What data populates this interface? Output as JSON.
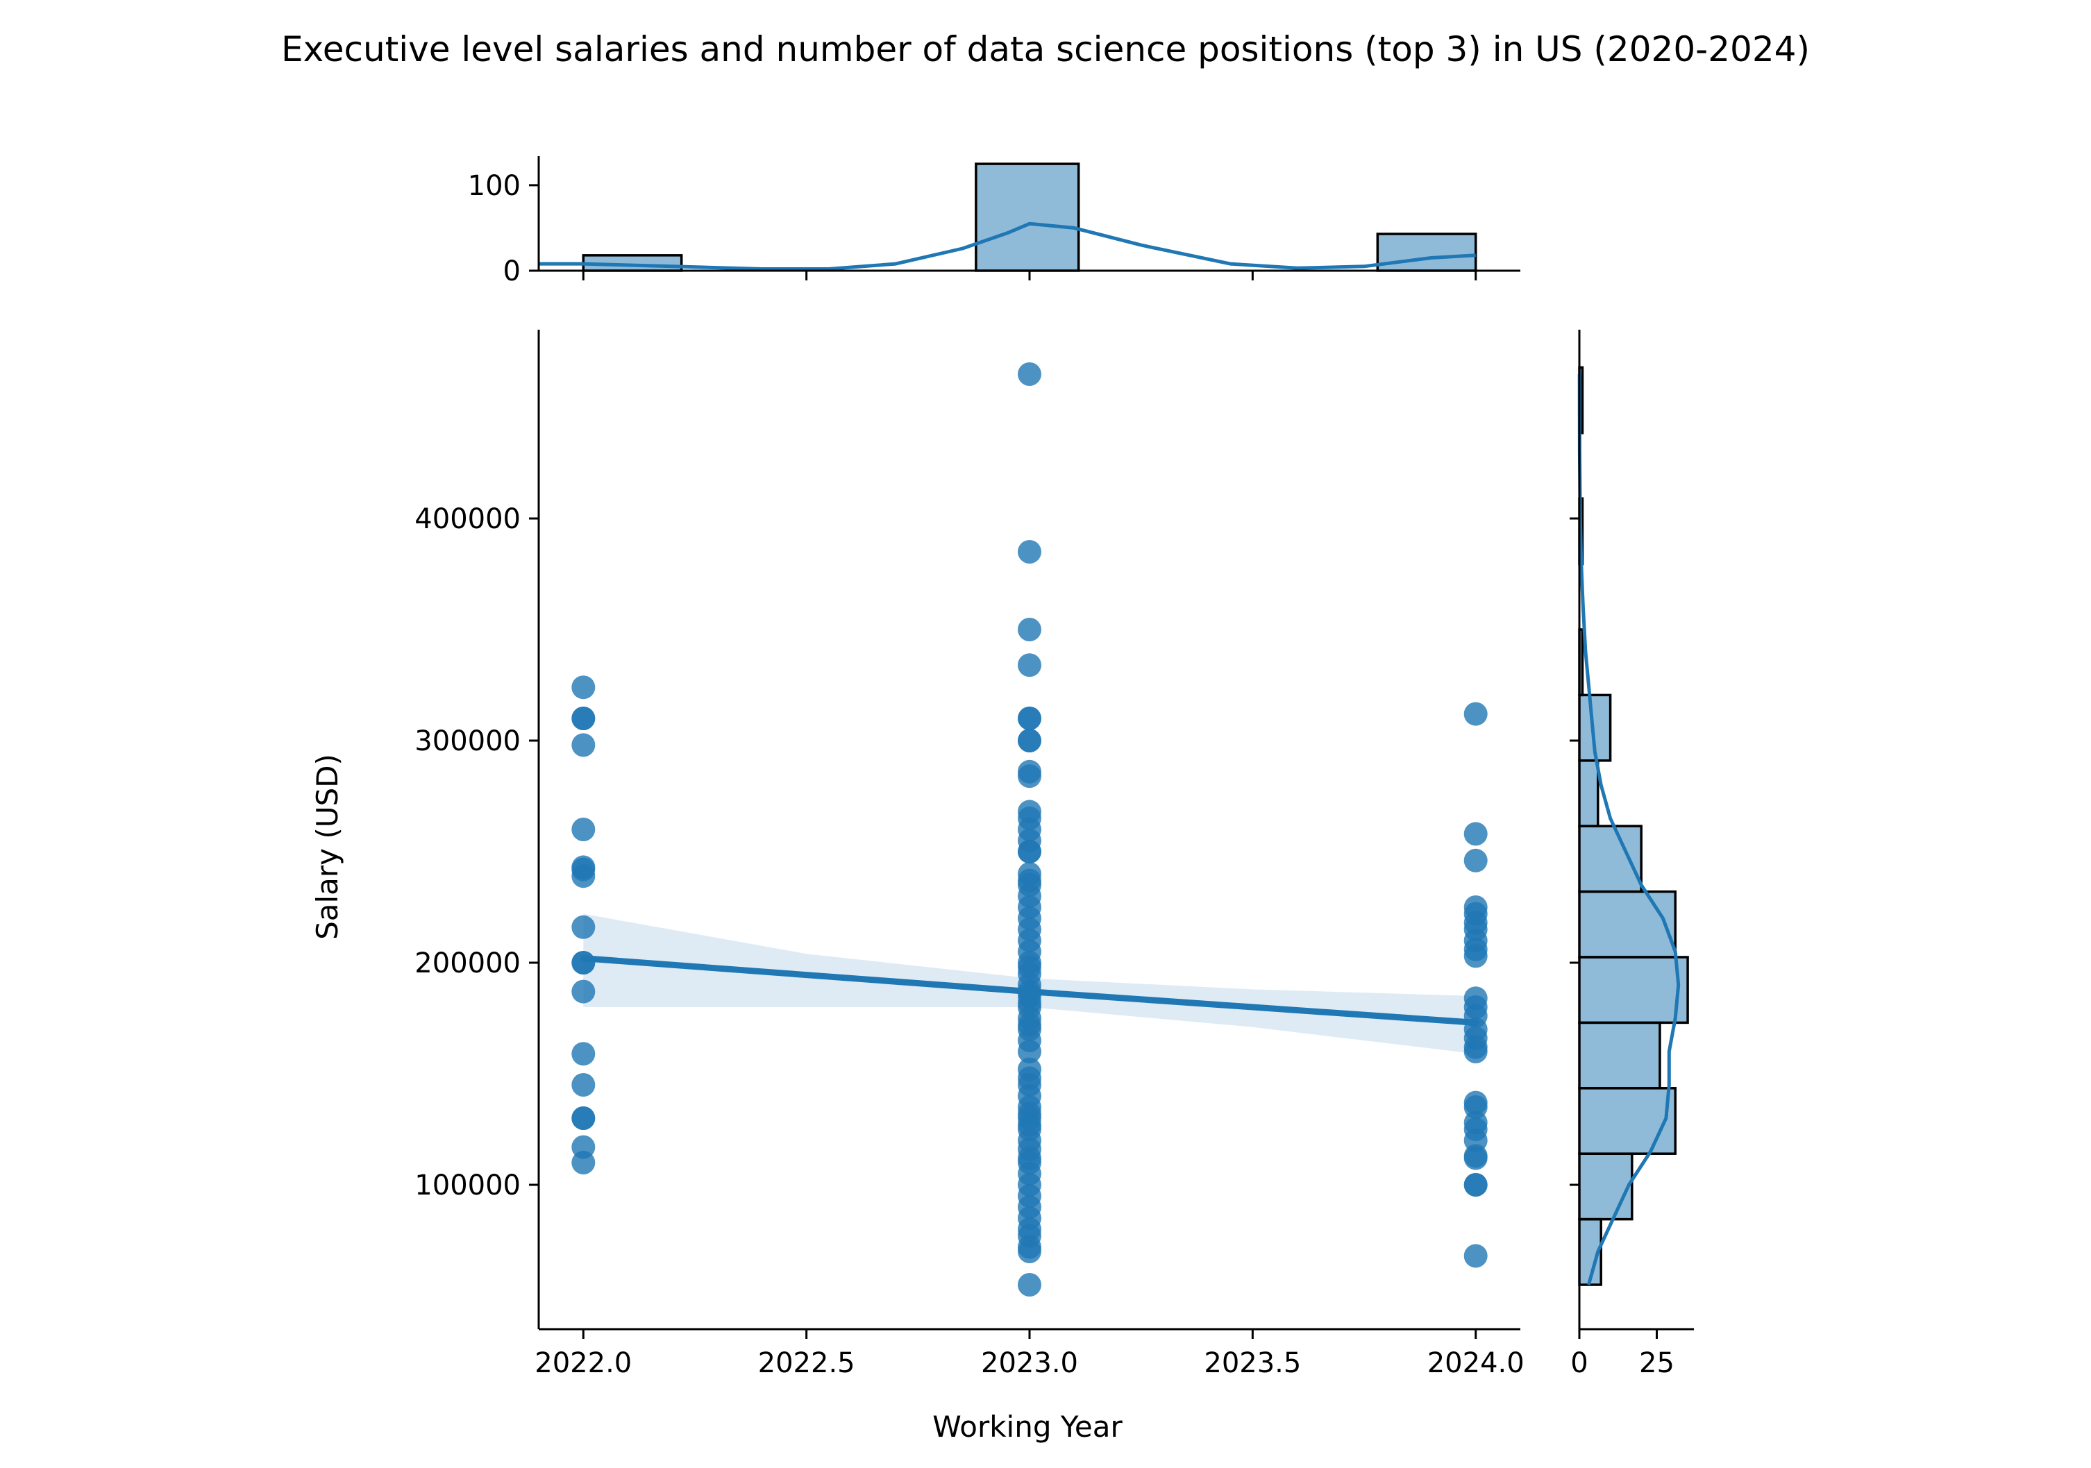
{
  "chart_data": {
    "type": "scatter",
    "title": "Executive level salaries and number of data science positions (top 3) in US (2020-2024)",
    "xlabel": "Working Year",
    "ylabel": "Salary (USD)",
    "xlim": [
      2021.9,
      2024.1
    ],
    "ylim": [
      35000,
      485000
    ],
    "x_ticks": [
      2022.0,
      2022.5,
      2023.0,
      2023.5,
      2024.0
    ],
    "x_tick_labels": [
      "2022.0",
      "2022.5",
      "2023.0",
      "2023.5",
      "2024.0"
    ],
    "y_ticks": [
      100000,
      200000,
      300000,
      400000
    ],
    "y_tick_labels": [
      "100000",
      "200000",
      "300000",
      "400000"
    ],
    "color": "#1f77b4",
    "grid": false,
    "points": [
      {
        "year": 2022.0,
        "salaries": [
          324000,
          310000,
          310000,
          298000,
          260000,
          243000,
          242000,
          239000,
          216000,
          200000,
          200000,
          187000,
          159000,
          145000,
          130000,
          130000,
          117000,
          110000
        ]
      },
      {
        "year": 2023.0,
        "salaries": [
          465000,
          385000,
          350000,
          334000,
          310000,
          310000,
          300000,
          300000,
          286000,
          284000,
          268000,
          265000,
          260000,
          255000,
          250000,
          250000,
          240000,
          237000,
          235000,
          230000,
          225000,
          220000,
          215000,
          210000,
          205000,
          200000,
          198000,
          195000,
          190000,
          187000,
          185000,
          182000,
          180000,
          175000,
          172000,
          170000,
          165000,
          160000,
          152000,
          148000,
          145000,
          140000,
          135000,
          132000,
          130000,
          127000,
          125000,
          120000,
          116000,
          112000,
          110000,
          105000,
          100000,
          95000,
          90000,
          85000,
          80000,
          77000,
          72000,
          70000,
          55000
        ]
      },
      {
        "year": 2024.0,
        "salaries": [
          312000,
          258000,
          246000,
          225000,
          222000,
          218000,
          215000,
          210000,
          206000,
          203000,
          184000,
          180000,
          176000,
          170000,
          166000,
          162000,
          160000,
          137000,
          135000,
          128000,
          125000,
          120000,
          113000,
          112000,
          100000,
          100000,
          68000
        ]
      }
    ],
    "regression": {
      "line": [
        [
          2022.0,
          202000
        ],
        [
          2023.0,
          187000
        ],
        [
          2024.0,
          173000
        ]
      ],
      "ci_upper": [
        [
          2022.0,
          222000
        ],
        [
          2022.5,
          204000
        ],
        [
          2023.0,
          193000
        ],
        [
          2023.5,
          188000
        ],
        [
          2024.0,
          185000
        ]
      ],
      "ci_lower": [
        [
          2024.0,
          159000
        ],
        [
          2023.5,
          171000
        ],
        [
          2023.0,
          180000
        ],
        [
          2022.5,
          180000
        ],
        [
          2022.0,
          180000
        ]
      ]
    },
    "x_marginal": {
      "type": "histogram",
      "yticks": [
        0,
        100
      ],
      "ytick_labels": [
        "0",
        "100"
      ],
      "ylim": [
        0,
        134
      ],
      "bins": [
        {
          "from": 2022.0,
          "to": 2022.22,
          "count": 18
        },
        {
          "from": 2022.88,
          "to": 2023.11,
          "count": 125
        },
        {
          "from": 2023.78,
          "to": 2024.0,
          "count": 43
        }
      ],
      "kde": [
        [
          2021.9,
          8
        ],
        [
          2022.0,
          8
        ],
        [
          2022.2,
          5
        ],
        [
          2022.4,
          2
        ],
        [
          2022.55,
          2
        ],
        [
          2022.7,
          8
        ],
        [
          2022.85,
          26
        ],
        [
          2022.95,
          44
        ],
        [
          2023.0,
          55
        ],
        [
          2023.1,
          50
        ],
        [
          2023.25,
          30
        ],
        [
          2023.45,
          8
        ],
        [
          2023.6,
          3
        ],
        [
          2023.75,
          5
        ],
        [
          2023.9,
          15
        ],
        [
          2024.0,
          18
        ]
      ]
    },
    "y_marginal": {
      "type": "histogram",
      "xticks": [
        0,
        25
      ],
      "xtick_labels": [
        "0",
        "25"
      ],
      "xlim": [
        0,
        37
      ],
      "bins": [
        {
          "from": 55000,
          "to": 84500,
          "count": 7
        },
        {
          "from": 84500,
          "to": 114000,
          "count": 17
        },
        {
          "from": 114000,
          "to": 143500,
          "count": 31
        },
        {
          "from": 143500,
          "to": 173000,
          "count": 26
        },
        {
          "from": 173000,
          "to": 202500,
          "count": 35
        },
        {
          "from": 202500,
          "to": 232000,
          "count": 31
        },
        {
          "from": 232000,
          "to": 261500,
          "count": 20
        },
        {
          "from": 261500,
          "to": 291000,
          "count": 6
        },
        {
          "from": 291000,
          "to": 320500,
          "count": 10
        },
        {
          "from": 320500,
          "to": 350000,
          "count": 1
        },
        {
          "from": 350000,
          "to": 379500,
          "count": 0
        },
        {
          "from": 379500,
          "to": 409000,
          "count": 1
        },
        {
          "from": 409000,
          "to": 438500,
          "count": 0
        },
        {
          "from": 438500,
          "to": 468000,
          "count": 1
        }
      ],
      "kde": [
        [
          55000,
          3
        ],
        [
          70000,
          6
        ],
        [
          85000,
          11
        ],
        [
          100000,
          16
        ],
        [
          115000,
          23
        ],
        [
          130000,
          28
        ],
        [
          145000,
          29
        ],
        [
          160000,
          29
        ],
        [
          175000,
          31
        ],
        [
          190000,
          32
        ],
        [
          205000,
          31
        ],
        [
          220000,
          27
        ],
        [
          235000,
          20
        ],
        [
          250000,
          15
        ],
        [
          265000,
          10
        ],
        [
          280000,
          7
        ],
        [
          295000,
          5
        ],
        [
          310000,
          4
        ],
        [
          325000,
          3
        ],
        [
          340000,
          2
        ],
        [
          360000,
          1.2
        ],
        [
          380000,
          0.6
        ],
        [
          400000,
          0.3
        ],
        [
          430000,
          0.1
        ],
        [
          465000,
          0.05
        ]
      ]
    }
  }
}
